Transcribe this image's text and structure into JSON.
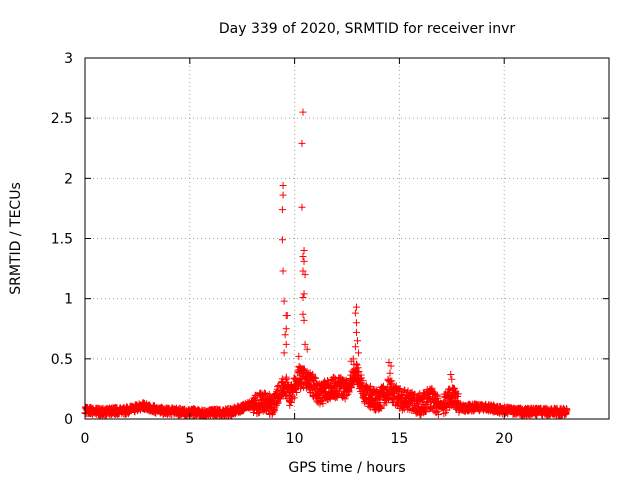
{
  "chart_data": {
    "type": "scatter",
    "title": "Day 339 of 2020, SRMTID for receiver invr",
    "xlabel": "GPS time / hours",
    "ylabel": "SRMTID / TECUs",
    "xlim": [
      0,
      25
    ],
    "ylim": [
      0,
      3
    ],
    "xticks": [
      0,
      5,
      10,
      15,
      20
    ],
    "xtick_labels": [
      "0",
      "5",
      "10",
      "15",
      "20"
    ],
    "yticks": [
      0,
      0.5,
      1,
      1.5,
      2,
      2.5,
      3
    ],
    "ytick_labels": [
      "0",
      "0.5",
      "1",
      "1.5",
      "2",
      "2.5",
      "3"
    ],
    "grid": true,
    "marker": "+",
    "series": [
      {
        "name": "SRMTID",
        "color": "#ff0000",
        "profile": [
          {
            "x": 0.0,
            "y": 0.07
          },
          {
            "x": 1.0,
            "y": 0.06
          },
          {
            "x": 2.0,
            "y": 0.07
          },
          {
            "x": 2.8,
            "y": 0.11
          },
          {
            "x": 3.5,
            "y": 0.07
          },
          {
            "x": 4.5,
            "y": 0.06
          },
          {
            "x": 6.0,
            "y": 0.05
          },
          {
            "x": 7.0,
            "y": 0.06
          },
          {
            "x": 7.8,
            "y": 0.11
          },
          {
            "x": 8.5,
            "y": 0.14
          },
          {
            "x": 9.0,
            "y": 0.12
          },
          {
            "x": 9.5,
            "y": 0.3
          },
          {
            "x": 9.8,
            "y": 0.18
          },
          {
            "x": 10.2,
            "y": 0.35
          },
          {
            "x": 10.8,
            "y": 0.3
          },
          {
            "x": 11.2,
            "y": 0.2
          },
          {
            "x": 11.8,
            "y": 0.27
          },
          {
            "x": 12.4,
            "y": 0.25
          },
          {
            "x": 12.9,
            "y": 0.4
          },
          {
            "x": 13.4,
            "y": 0.2
          },
          {
            "x": 14.0,
            "y": 0.15
          },
          {
            "x": 14.5,
            "y": 0.25
          },
          {
            "x": 15.0,
            "y": 0.17
          },
          {
            "x": 16.0,
            "y": 0.12
          },
          {
            "x": 16.5,
            "y": 0.18
          },
          {
            "x": 17.0,
            "y": 0.1
          },
          {
            "x": 17.5,
            "y": 0.2
          },
          {
            "x": 18.0,
            "y": 0.09
          },
          {
            "x": 19.0,
            "y": 0.1
          },
          {
            "x": 20.0,
            "y": 0.07
          },
          {
            "x": 21.0,
            "y": 0.06
          },
          {
            "x": 22.0,
            "y": 0.06
          },
          {
            "x": 23.0,
            "y": 0.06
          }
        ],
        "notable_points": [
          {
            "x": 9.45,
            "y": 1.94
          },
          {
            "x": 9.45,
            "y": 1.86
          },
          {
            "x": 9.42,
            "y": 1.74
          },
          {
            "x": 9.42,
            "y": 1.49
          },
          {
            "x": 9.45,
            "y": 1.23
          },
          {
            "x": 9.5,
            "y": 0.98
          },
          {
            "x": 9.6,
            "y": 0.86
          },
          {
            "x": 9.65,
            "y": 0.86
          },
          {
            "x": 9.6,
            "y": 0.75
          },
          {
            "x": 9.55,
            "y": 0.7
          },
          {
            "x": 9.6,
            "y": 0.62
          },
          {
            "x": 9.5,
            "y": 0.55
          },
          {
            "x": 10.4,
            "y": 2.55
          },
          {
            "x": 10.35,
            "y": 2.29
          },
          {
            "x": 10.35,
            "y": 1.76
          },
          {
            "x": 10.45,
            "y": 1.4
          },
          {
            "x": 10.4,
            "y": 1.35
          },
          {
            "x": 10.45,
            "y": 1.31
          },
          {
            "x": 10.4,
            "y": 1.23
          },
          {
            "x": 10.5,
            "y": 1.2
          },
          {
            "x": 10.45,
            "y": 1.04
          },
          {
            "x": 10.4,
            "y": 1.01
          },
          {
            "x": 10.4,
            "y": 0.87
          },
          {
            "x": 10.45,
            "y": 0.82
          },
          {
            "x": 10.5,
            "y": 0.62
          },
          {
            "x": 10.6,
            "y": 0.58
          },
          {
            "x": 10.2,
            "y": 0.52
          },
          {
            "x": 12.95,
            "y": 0.93
          },
          {
            "x": 12.9,
            "y": 0.88
          },
          {
            "x": 12.95,
            "y": 0.8
          },
          {
            "x": 12.95,
            "y": 0.72
          },
          {
            "x": 13.0,
            "y": 0.65
          },
          {
            "x": 12.9,
            "y": 0.6
          },
          {
            "x": 13.05,
            "y": 0.55
          },
          {
            "x": 12.8,
            "y": 0.5
          },
          {
            "x": 12.7,
            "y": 0.48
          },
          {
            "x": 14.5,
            "y": 0.47
          },
          {
            "x": 14.6,
            "y": 0.44
          },
          {
            "x": 14.55,
            "y": 0.38
          },
          {
            "x": 17.45,
            "y": 0.37
          },
          {
            "x": 17.5,
            "y": 0.33
          }
        ]
      }
    ]
  }
}
